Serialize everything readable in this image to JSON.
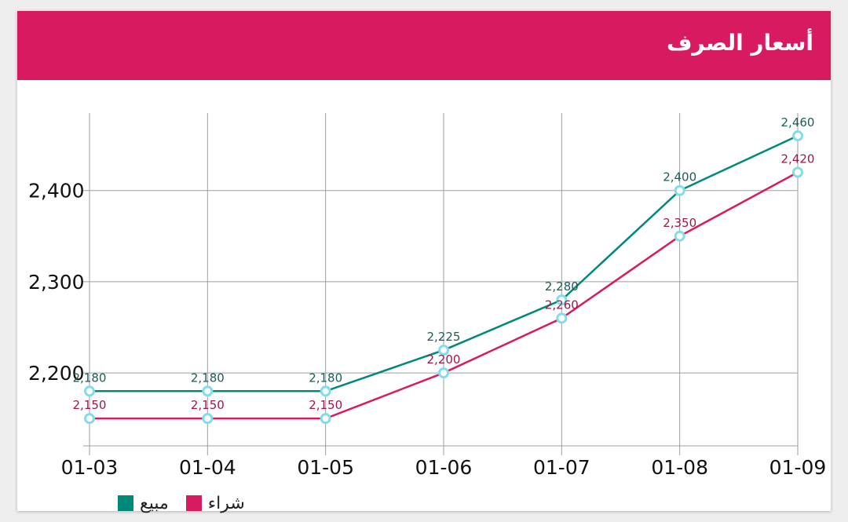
{
  "header": {
    "title": "أسعار الصرف",
    "color": "#d81b60"
  },
  "chart_data": {
    "type": "line",
    "title": "أسعار الصرف",
    "categories": [
      "01-03",
      "01-04",
      "01-05",
      "01-06",
      "01-07",
      "01-08",
      "01-09"
    ],
    "series": [
      {
        "name": "مبيع",
        "color": "#00897b",
        "label_color": "#1b5e57",
        "values": [
          2180,
          2180,
          2180,
          2225,
          2280,
          2400,
          2460
        ]
      },
      {
        "name": "شراء",
        "color": "#d81b60",
        "label_color": "#a3154a",
        "values": [
          2150,
          2150,
          2150,
          2200,
          2260,
          2350,
          2420
        ]
      }
    ],
    "y_ticks": [
      2200,
      2300,
      2400
    ],
    "y_tick_labels": [
      "2,200",
      "2,300",
      "2,400"
    ],
    "ylim": [
      2120,
      2485
    ],
    "grid": true,
    "marker_color": "#80deea",
    "legend_position": "bottom-left"
  }
}
